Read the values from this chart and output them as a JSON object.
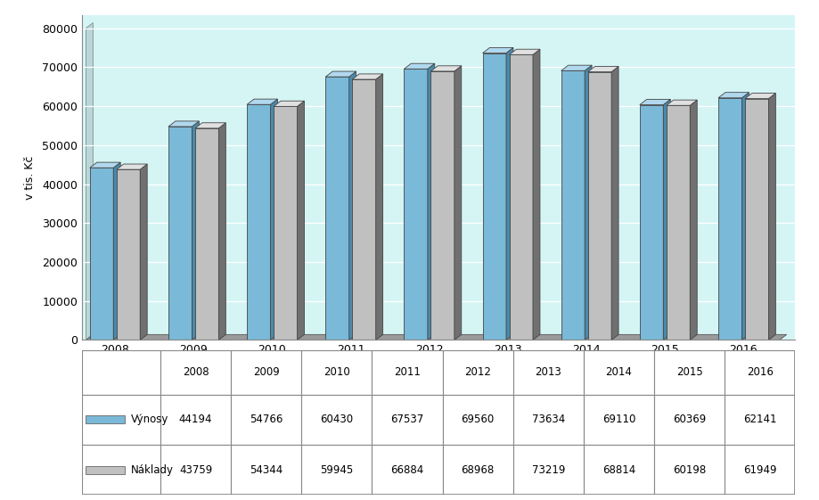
{
  "years": [
    "2008",
    "2009",
    "2010",
    "2011",
    "2012",
    "2013",
    "2014",
    "2015",
    "2016"
  ],
  "vynosy": [
    44194,
    54766,
    60430,
    67537,
    69560,
    73634,
    69110,
    60369,
    62141
  ],
  "naklady": [
    43759,
    54344,
    59945,
    66884,
    68968,
    73219,
    68814,
    60198,
    61949
  ],
  "ylabel": "v tis. Kč",
  "ylim": [
    0,
    80000
  ],
  "yticks": [
    0,
    10000,
    20000,
    30000,
    40000,
    50000,
    60000,
    70000,
    80000
  ],
  "bar_color_vynosy_face": "#7ab9d8",
  "bar_color_vynosy_top": "#b0d8ee",
  "bar_color_vynosy_side": "#4a8aaa",
  "bar_color_naklady_face": "#c0c0c0",
  "bar_color_naklady_top": "#e0e0e0",
  "bar_color_naklady_side": "#707070",
  "background_color": "#d5f5f5",
  "floor_color": "#909090",
  "wall_left_color": "#c0e8e8",
  "legend_vynosy_color": "#7ab9d8",
  "legend_naklady_color": "#c0c0c0",
  "legend_label_vynosy": "Výnosy",
  "legend_label_naklady": "Náklady",
  "table_header_bg": "#ffffff",
  "table_cell_bg": "#ffffff",
  "table_border_color": "#888888"
}
